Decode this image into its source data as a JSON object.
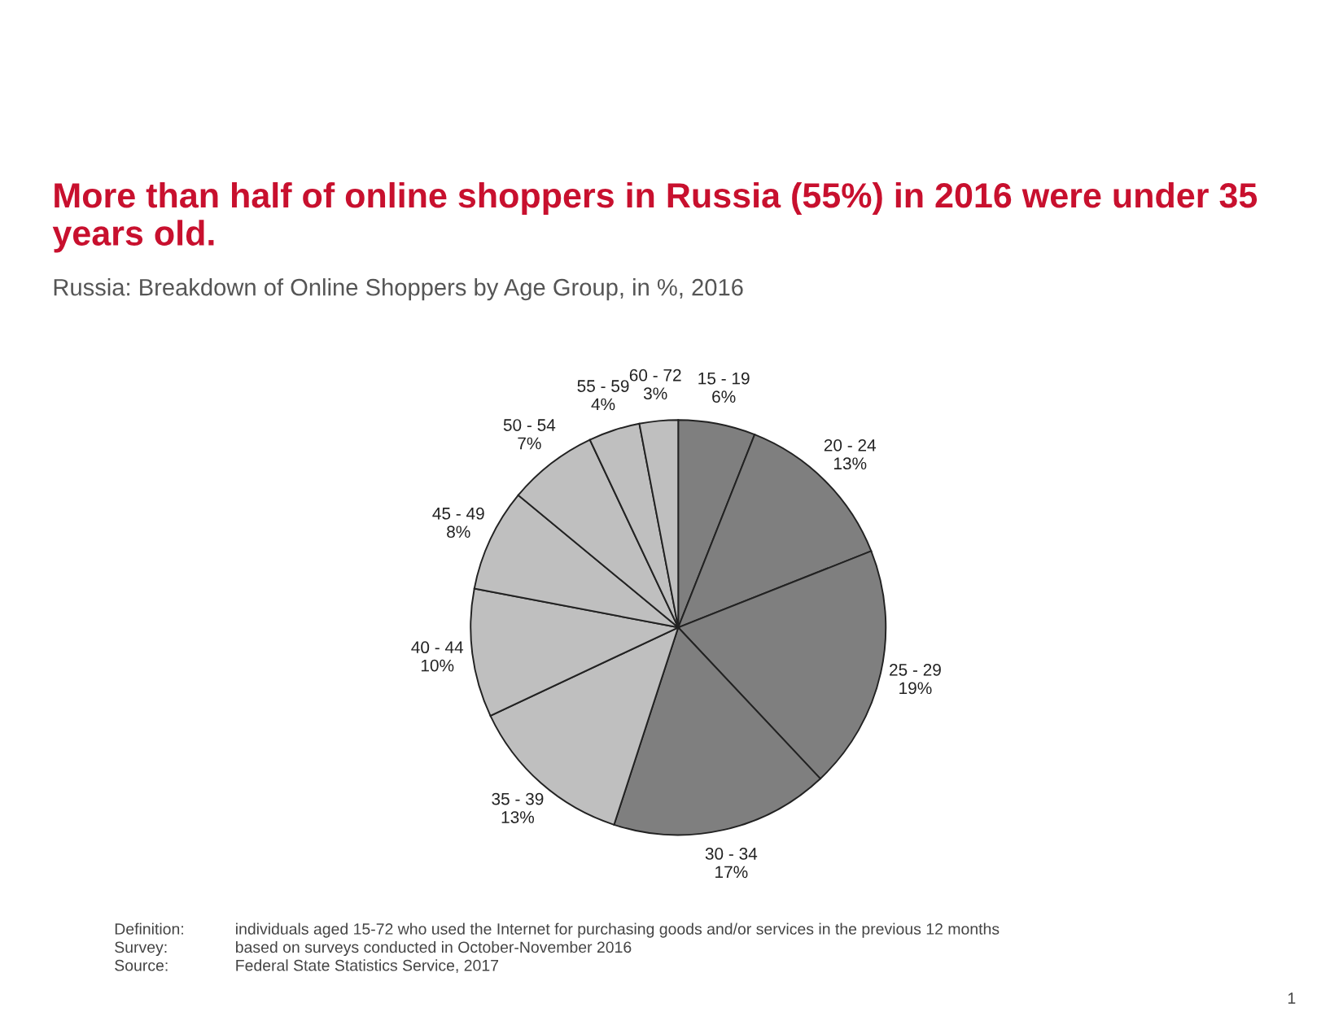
{
  "chart_data": {
    "type": "pie",
    "title": "More than half of online shoppers in Russia (55%) in 2016 were under 35 years old.",
    "subtitle": "Russia: Breakdown of Online Shoppers by Age Group, in %, 2016",
    "categories": [
      "15 - 19",
      "20 - 24",
      "25 - 29",
      "30 - 34",
      "35 - 39",
      "40 - 44",
      "45 - 49",
      "50 - 54",
      "55 - 59",
      "60 - 72"
    ],
    "values": [
      6,
      13,
      19,
      17,
      13,
      10,
      8,
      7,
      4,
      3
    ],
    "colors": [
      "#7f7f7f",
      "#7f7f7f",
      "#7f7f7f",
      "#7f7f7f",
      "#bfbfbf",
      "#bfbfbf",
      "#bfbfbf",
      "#bfbfbf",
      "#bfbfbf",
      "#bfbfbf"
    ],
    "value_labels": [
      "6%",
      "13%",
      "19%",
      "17%",
      "13%",
      "10%",
      "8%",
      "7%",
      "4%",
      "3%"
    ],
    "annotations": [
      "Definition:\tindividuals aged 15-72 who used the Internet for purchasing goods and/or services in the previous 12 months",
      "Survey:\tbased on surveys conducted in October-November 2016",
      "Source:\tFederal State Statistics Service, 2017",
      "1"
    ]
  }
}
